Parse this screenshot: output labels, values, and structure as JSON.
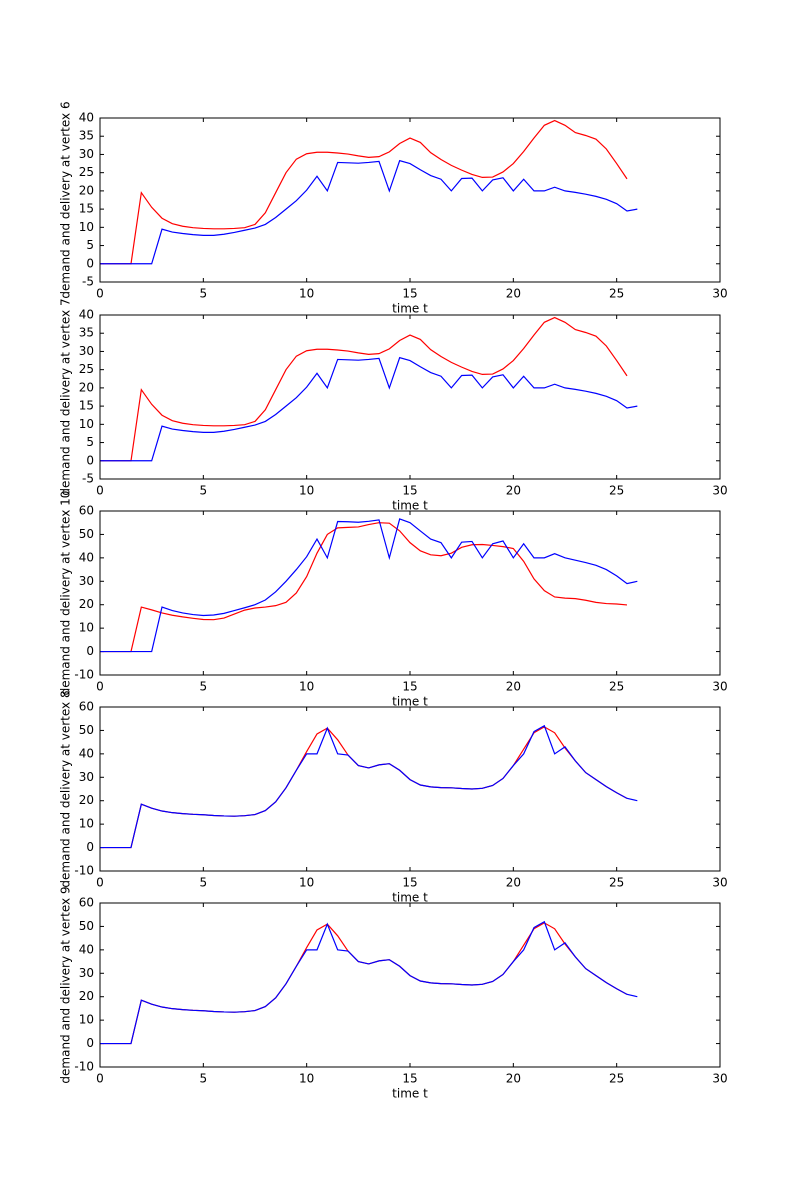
{
  "chart_data": [
    {
      "type": "line",
      "xlabel": "time t",
      "ylabel": "demand and delivery at vertex 6",
      "x": [
        0,
        0.5,
        1,
        1.5,
        2,
        2.5,
        3,
        3.5,
        4,
        4.5,
        5,
        5.5,
        6,
        6.5,
        7,
        7.5,
        8,
        8.5,
        9,
        9.5,
        10,
        10.5,
        11,
        11.5,
        12,
        12.5,
        13,
        13.5,
        14,
        14.5,
        15,
        15.5,
        16,
        16.5,
        17,
        17.5,
        18,
        18.5,
        19,
        19.5,
        20,
        20.5,
        21,
        21.5,
        22,
        22.5,
        23,
        23.5,
        24,
        24.5,
        25,
        25.5,
        26
      ],
      "series": [
        {
          "color": "#ff0000",
          "values": [
            0,
            0,
            0,
            0,
            19.5,
            15.5,
            12.5,
            11,
            10.3,
            9.9,
            9.7,
            9.6,
            9.6,
            9.7,
            9.9,
            10.8,
            14,
            19.5,
            25,
            28.7,
            30.2,
            30.6,
            30.6,
            30.4,
            30.1,
            29.6,
            29.2,
            29.4,
            30.7,
            33,
            34.5,
            33.3,
            30.5,
            28.6,
            27,
            25.7,
            24.5,
            23.7,
            23.8,
            25.2,
            27.5,
            30.8,
            34.5,
            38,
            39.3,
            38,
            36,
            35.2,
            34.2,
            31.5,
            27.5,
            23.3,
            null
          ]
        },
        {
          "color": "#0000ff",
          "values": [
            0,
            0,
            0,
            0,
            0,
            0,
            9.5,
            8.7,
            8.3,
            8.0,
            7.8,
            7.8,
            8.1,
            8.6,
            9.2,
            9.8,
            10.8,
            12.7,
            15,
            17.3,
            20.2,
            24,
            20,
            27.8,
            27.7,
            27.6,
            27.8,
            28.1,
            20,
            28.3,
            27.5,
            25.8,
            24.2,
            23.2,
            20,
            23.4,
            23.5,
            20,
            23,
            23.6,
            20,
            23.2,
            20,
            20,
            21,
            20,
            19.6,
            19.1,
            18.5,
            17.7,
            16.5,
            14.5,
            15
          ]
        }
      ],
      "xlim": [
        0,
        30
      ],
      "ylim": [
        -5,
        40
      ],
      "xticks": [
        0,
        5,
        10,
        15,
        20,
        25,
        30
      ],
      "yticks": [
        -5,
        0,
        5,
        10,
        15,
        20,
        25,
        30,
        35,
        40
      ]
    },
    {
      "type": "line",
      "xlabel": "time t",
      "ylabel": "demand and delivery at vertex 7",
      "x": [
        0,
        0.5,
        1,
        1.5,
        2,
        2.5,
        3,
        3.5,
        4,
        4.5,
        5,
        5.5,
        6,
        6.5,
        7,
        7.5,
        8,
        8.5,
        9,
        9.5,
        10,
        10.5,
        11,
        11.5,
        12,
        12.5,
        13,
        13.5,
        14,
        14.5,
        15,
        15.5,
        16,
        16.5,
        17,
        17.5,
        18,
        18.5,
        19,
        19.5,
        20,
        20.5,
        21,
        21.5,
        22,
        22.5,
        23,
        23.5,
        24,
        24.5,
        25,
        25.5,
        26
      ],
      "series": [
        {
          "color": "#ff0000",
          "values": [
            0,
            0,
            0,
            0,
            19.5,
            15.5,
            12.5,
            11,
            10.3,
            9.9,
            9.7,
            9.6,
            9.6,
            9.7,
            9.9,
            10.8,
            14,
            19.5,
            25,
            28.7,
            30.2,
            30.6,
            30.6,
            30.4,
            30.1,
            29.6,
            29.2,
            29.4,
            30.7,
            33,
            34.5,
            33.3,
            30.5,
            28.6,
            27,
            25.7,
            24.5,
            23.7,
            23.8,
            25.2,
            27.5,
            30.8,
            34.5,
            38,
            39.3,
            38,
            36,
            35.2,
            34.2,
            31.5,
            27.5,
            23.3,
            null
          ]
        },
        {
          "color": "#0000ff",
          "values": [
            0,
            0,
            0,
            0,
            0,
            0,
            9.5,
            8.7,
            8.3,
            8.0,
            7.8,
            7.8,
            8.1,
            8.6,
            9.2,
            9.8,
            10.8,
            12.7,
            15,
            17.3,
            20.2,
            24,
            20,
            27.8,
            27.7,
            27.6,
            27.8,
            28.1,
            20,
            28.3,
            27.5,
            25.8,
            24.2,
            23.2,
            20,
            23.4,
            23.5,
            20,
            23,
            23.6,
            20,
            23.2,
            20,
            20,
            21,
            20,
            19.6,
            19.1,
            18.5,
            17.7,
            16.5,
            14.5,
            15
          ]
        }
      ],
      "xlim": [
        0,
        30
      ],
      "ylim": [
        -5,
        40
      ],
      "xticks": [
        0,
        5,
        10,
        15,
        20,
        25,
        30
      ],
      "yticks": [
        -5,
        0,
        5,
        10,
        15,
        20,
        25,
        30,
        35,
        40
      ]
    },
    {
      "type": "line",
      "xlabel": "time t",
      "ylabel": "demand and delivery at vertex 10",
      "x": [
        0,
        0.5,
        1,
        1.5,
        2,
        2.5,
        3,
        3.5,
        4,
        4.5,
        5,
        5.5,
        6,
        6.5,
        7,
        7.5,
        8,
        8.5,
        9,
        9.5,
        10,
        10.5,
        11,
        11.5,
        12,
        12.5,
        13,
        13.5,
        14,
        14.5,
        15,
        15.5,
        16,
        16.5,
        17,
        17.5,
        18,
        18.5,
        19,
        19.5,
        20,
        20.5,
        21,
        21.5,
        22,
        22.5,
        23,
        23.5,
        24,
        24.5,
        25,
        25.5,
        26
      ],
      "series": [
        {
          "color": "#ff0000",
          "values": [
            0,
            0,
            0,
            0,
            19,
            17.8,
            16.5,
            15.5,
            14.8,
            14.2,
            13.7,
            13.6,
            14.3,
            16,
            17.7,
            18.6,
            19,
            19.6,
            21,
            25,
            32,
            42,
            50,
            52.8,
            53,
            53.2,
            54.2,
            55,
            54.8,
            51.5,
            46.5,
            43,
            41.3,
            40.9,
            42,
            44.5,
            45.6,
            45.7,
            45.3,
            44.8,
            44,
            38.5,
            31,
            26,
            23.3,
            22.8,
            22.6,
            21.9,
            21,
            20.5,
            20.3,
            19.9,
            null
          ]
        },
        {
          "color": "#0000ff",
          "values": [
            0,
            0,
            0,
            0,
            0,
            0,
            19,
            17.5,
            16.5,
            15.8,
            15.4,
            15.6,
            16.3,
            17.5,
            18.7,
            20,
            22,
            25.5,
            30,
            35,
            40.5,
            48,
            40,
            55.5,
            55.4,
            55.2,
            55.6,
            56.2,
            40,
            56.6,
            55,
            51.5,
            48,
            46.5,
            40,
            46.7,
            47,
            40,
            46,
            47.2,
            40,
            46,
            40,
            40,
            41.8,
            40,
            39,
            38,
            36.8,
            35,
            32.3,
            29,
            30
          ]
        }
      ],
      "xlim": [
        0,
        30
      ],
      "ylim": [
        -10,
        60
      ],
      "xticks": [
        0,
        5,
        10,
        15,
        20,
        25,
        30
      ],
      "yticks": [
        -10,
        0,
        10,
        20,
        30,
        40,
        50,
        60
      ]
    },
    {
      "type": "line",
      "xlabel": "time t",
      "ylabel": "demand and delivery at vertex 8",
      "x": [
        0,
        0.5,
        1,
        1.5,
        2,
        2.5,
        3,
        3.5,
        4,
        4.5,
        5,
        5.5,
        6,
        6.5,
        7,
        7.5,
        8,
        8.5,
        9,
        9.5,
        10,
        10.5,
        11,
        11.5,
        12,
        12.5,
        13,
        13.5,
        14,
        14.5,
        15,
        15.5,
        16,
        16.5,
        17,
        17.5,
        18,
        18.5,
        19,
        19.5,
        20,
        20.5,
        21,
        21.5,
        22,
        22.5,
        23,
        23.5,
        24,
        24.5,
        25,
        25.5,
        26
      ],
      "series": [
        {
          "color": "#ff0000",
          "values": [
            0,
            0,
            0,
            0,
            18.5,
            16.8,
            15.6,
            14.9,
            14.5,
            14.2,
            14,
            13.7,
            13.5,
            13.4,
            13.6,
            14.1,
            15.8,
            19.5,
            25.5,
            33,
            41,
            48.5,
            51,
            46,
            39.5,
            35,
            34,
            35.3,
            35.8,
            33,
            29,
            26.7,
            25.9,
            25.6,
            25.5,
            25.2,
            25,
            25.3,
            26.5,
            29.5,
            35,
            42,
            49,
            51.5,
            49,
            42.5,
            37,
            32,
            29,
            26,
            23.4,
            21,
            null
          ]
        },
        {
          "color": "#0000ff",
          "values": [
            0,
            0,
            0,
            0,
            18.5,
            16.8,
            15.6,
            14.9,
            14.5,
            14.2,
            14,
            13.7,
            13.5,
            13.4,
            13.6,
            14.1,
            15.8,
            19.5,
            25.5,
            33,
            40,
            40,
            51,
            40,
            39.5,
            35,
            34,
            35.3,
            35.8,
            33,
            29,
            26.7,
            25.9,
            25.6,
            25.5,
            25.2,
            25,
            25.3,
            26.5,
            29.5,
            35,
            40,
            49.5,
            52,
            40,
            43,
            37,
            32,
            29,
            26,
            23.4,
            21,
            20
          ]
        }
      ],
      "xlim": [
        0,
        30
      ],
      "ylim": [
        -10,
        60
      ],
      "xticks": [
        0,
        5,
        10,
        15,
        20,
        25,
        30
      ],
      "yticks": [
        -10,
        0,
        10,
        20,
        30,
        40,
        50,
        60
      ]
    },
    {
      "type": "line",
      "xlabel": "time t",
      "ylabel": "demand and delivery at vertex 9",
      "x": [
        0,
        0.5,
        1,
        1.5,
        2,
        2.5,
        3,
        3.5,
        4,
        4.5,
        5,
        5.5,
        6,
        6.5,
        7,
        7.5,
        8,
        8.5,
        9,
        9.5,
        10,
        10.5,
        11,
        11.5,
        12,
        12.5,
        13,
        13.5,
        14,
        14.5,
        15,
        15.5,
        16,
        16.5,
        17,
        17.5,
        18,
        18.5,
        19,
        19.5,
        20,
        20.5,
        21,
        21.5,
        22,
        22.5,
        23,
        23.5,
        24,
        24.5,
        25,
        25.5,
        26
      ],
      "series": [
        {
          "color": "#ff0000",
          "values": [
            0,
            0,
            0,
            0,
            18.5,
            16.8,
            15.6,
            14.9,
            14.5,
            14.2,
            14,
            13.7,
            13.5,
            13.4,
            13.6,
            14.1,
            15.8,
            19.5,
            25.5,
            33,
            41,
            48.5,
            51,
            46,
            39.5,
            35,
            34,
            35.3,
            35.8,
            33,
            29,
            26.7,
            25.9,
            25.6,
            25.5,
            25.2,
            25,
            25.3,
            26.5,
            29.5,
            35,
            42,
            49,
            51.5,
            49,
            42.5,
            37,
            32,
            29,
            26,
            23.4,
            21,
            null
          ]
        },
        {
          "color": "#0000ff",
          "values": [
            0,
            0,
            0,
            0,
            18.5,
            16.8,
            15.6,
            14.9,
            14.5,
            14.2,
            14,
            13.7,
            13.5,
            13.4,
            13.6,
            14.1,
            15.8,
            19.5,
            25.5,
            33,
            40,
            40,
            51,
            40,
            39.5,
            35,
            34,
            35.3,
            35.8,
            33,
            29,
            26.7,
            25.9,
            25.6,
            25.5,
            25.2,
            25,
            25.3,
            26.5,
            29.5,
            35,
            40,
            49.5,
            52,
            40,
            43,
            37,
            32,
            29,
            26,
            23.4,
            21,
            20
          ]
        }
      ],
      "xlim": [
        0,
        30
      ],
      "ylim": [
        -10,
        60
      ],
      "xticks": [
        0,
        5,
        10,
        15,
        20,
        25,
        30
      ],
      "yticks": [
        -10,
        0,
        10,
        20,
        30,
        40,
        50,
        60
      ]
    }
  ]
}
